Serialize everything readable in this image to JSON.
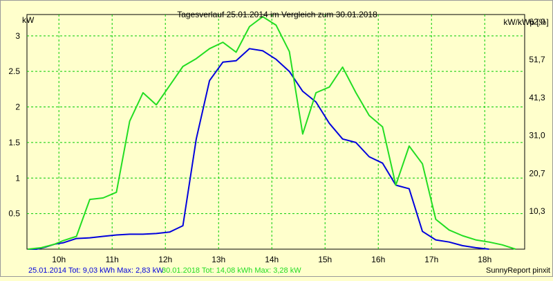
{
  "chart_data": {
    "type": "line",
    "title": "Tagesverlauf 25.01.2014 im Vergleich zum 30.01.2018",
    "ylabel_left": "kW",
    "ylabel_right": "kW/kWp [%]",
    "ylim": [
      0,
      3.3
    ],
    "y_ticks": [
      0.5,
      1,
      1.5,
      2,
      2.5,
      3
    ],
    "y_tick_labels": [
      "0.5",
      "1",
      "1.5",
      "2",
      "2.5",
      "3"
    ],
    "right_ticks": [
      0.534,
      1.067,
      1.601,
      2.13,
      2.665,
      3.2
    ],
    "right_tick_labels": [
      "10,3",
      "20,7",
      "31,0",
      "41,3",
      "51,7",
      "62,0"
    ],
    "xlim": [
      9.4,
      18.75
    ],
    "x_ticks": [
      10,
      11,
      12,
      13,
      14,
      15,
      16,
      17,
      18
    ],
    "x_tick_labels": [
      "10h",
      "11h",
      "12h",
      "13h",
      "14h",
      "15h",
      "16h",
      "17h",
      "18h"
    ],
    "grid": true,
    "legend_position": "bottom-left",
    "series": [
      {
        "name": "25.01.2014 Tot: 9,03 kWh Max: 2,83 kW",
        "color": "#0000dd",
        "x": [
          9.42,
          9.58,
          9.75,
          9.92,
          10.08,
          10.33,
          10.58,
          10.83,
          11.08,
          11.33,
          11.58,
          11.83,
          12.08,
          12.33,
          12.58,
          12.83,
          13.08,
          13.33,
          13.58,
          13.83,
          14.08,
          14.33,
          14.58,
          14.83,
          15.08,
          15.33,
          15.58,
          15.83,
          16.08,
          16.33,
          16.58,
          16.83,
          17.08,
          17.33,
          17.58,
          17.83,
          18.08
        ],
        "y": [
          0.0,
          0.0,
          0.03,
          0.07,
          0.09,
          0.15,
          0.16,
          0.18,
          0.2,
          0.21,
          0.21,
          0.22,
          0.24,
          0.33,
          1.55,
          2.37,
          2.63,
          2.65,
          2.82,
          2.79,
          2.67,
          2.5,
          2.22,
          2.07,
          1.77,
          1.55,
          1.5,
          1.3,
          1.21,
          0.9,
          0.85,
          0.25,
          0.13,
          0.1,
          0.05,
          0.02,
          0.0
        ]
      },
      {
        "name": "30.01.2018 Tot: 14,08 kWh Max: 3,28 kW",
        "color": "#22dd22",
        "x": [
          9.42,
          9.67,
          9.92,
          10.08,
          10.33,
          10.58,
          10.83,
          11.08,
          11.33,
          11.58,
          11.83,
          12.08,
          12.33,
          12.58,
          12.83,
          13.08,
          13.33,
          13.58,
          13.83,
          14.08,
          14.33,
          14.58,
          14.83,
          15.08,
          15.33,
          15.58,
          15.83,
          16.08,
          16.33,
          16.58,
          16.83,
          17.08,
          17.33,
          17.58,
          17.83,
          18.08,
          18.33,
          18.58
        ],
        "y": [
          0.0,
          0.02,
          0.07,
          0.12,
          0.18,
          0.7,
          0.72,
          0.8,
          1.8,
          2.2,
          2.03,
          2.3,
          2.57,
          2.68,
          2.82,
          2.91,
          2.77,
          3.13,
          3.27,
          3.15,
          2.78,
          1.62,
          2.2,
          2.28,
          2.56,
          2.2,
          1.88,
          1.72,
          0.9,
          1.45,
          1.2,
          0.42,
          0.27,
          0.19,
          0.13,
          0.1,
          0.06,
          0.0
        ]
      }
    ]
  },
  "footer": {
    "series1_legend": "25.01.2014 Tot: 9,03 kWh Max: 2,83 kW",
    "series2_legend": "30.01.2018 Tot: 14,08 kWh Max: 3,28 kW",
    "credit": "SunnyReport pinxit"
  }
}
